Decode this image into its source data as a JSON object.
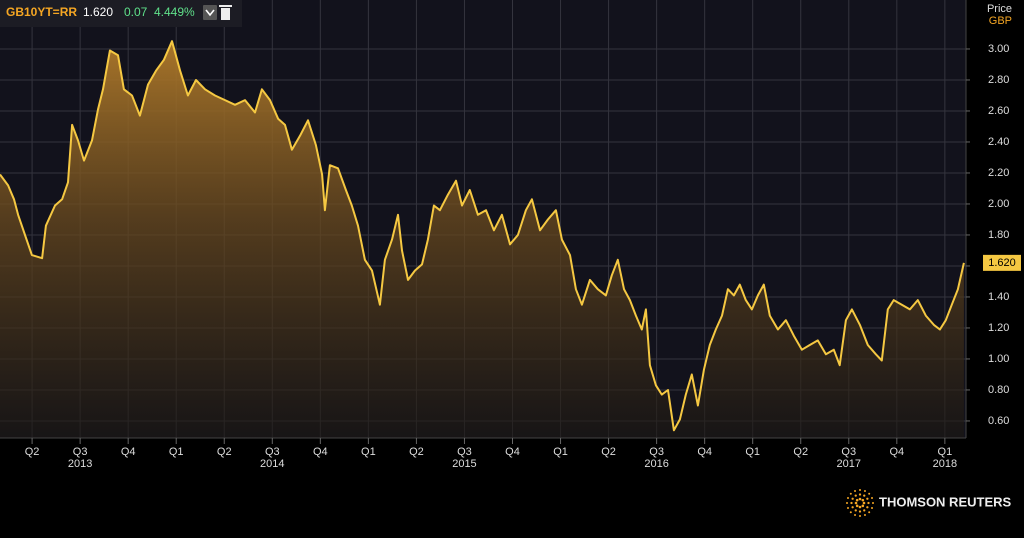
{
  "header": {
    "ric": "GB10YT=RR",
    "price": "1.620",
    "change": "0.07",
    "change_pct": "4.449%"
  },
  "footer": {
    "brand": "THOMSON REUTERS"
  },
  "chart_data": {
    "type": "line",
    "y_axis_title": "Price",
    "y_axis_unit": "GBP",
    "x": [
      2013.083,
      2013.125,
      2013.156,
      2013.177,
      2013.213,
      2013.249,
      2013.302,
      2013.322,
      2013.369,
      2013.406,
      2013.437,
      2013.458,
      2013.489,
      2013.52,
      2013.562,
      2013.593,
      2013.619,
      2013.655,
      2013.697,
      2013.728,
      2013.77,
      2013.811,
      2013.853,
      2013.895,
      2013.936,
      2013.978,
      2014.02,
      2014.061,
      2014.103,
      2014.15,
      2014.202,
      2014.254,
      2014.306,
      2014.358,
      2014.41,
      2014.446,
      2014.488,
      2014.53,
      2014.566,
      2014.602,
      2014.644,
      2014.686,
      2014.727,
      2014.759,
      2014.774,
      2014.8,
      2014.842,
      2014.883,
      2014.914,
      2014.946,
      2014.982,
      2015.019,
      2015.06,
      2015.086,
      2015.123,
      2015.154,
      2015.175,
      2015.206,
      2015.242,
      2015.279,
      2015.31,
      2015.341,
      2015.372,
      2015.414,
      2015.456,
      2015.487,
      2015.528,
      2015.57,
      2015.612,
      2015.653,
      2015.695,
      2015.737,
      2015.778,
      2015.82,
      2015.851,
      2015.893,
      2015.934,
      2015.976,
      2016.007,
      2016.049,
      2016.08,
      2016.111,
      2016.153,
      2016.194,
      2016.236,
      2016.267,
      2016.298,
      2016.33,
      2016.361,
      2016.392,
      2016.423,
      2016.444,
      2016.465,
      2016.496,
      2016.527,
      2016.559,
      2016.59,
      2016.621,
      2016.652,
      2016.683,
      2016.715,
      2016.746,
      2016.777,
      2016.808,
      2016.84,
      2016.871,
      2016.902,
      2016.933,
      2016.964,
      2016.996,
      2017.027,
      2017.058,
      2017.089,
      2017.131,
      2017.173,
      2017.214,
      2017.256,
      2017.297,
      2017.339,
      2017.381,
      2017.422,
      2017.453,
      2017.485,
      2017.516,
      2017.558,
      2017.599,
      2017.641,
      2017.672,
      2017.703,
      2017.734,
      2017.776,
      2017.818,
      2017.859,
      2017.901,
      2017.943,
      2017.974,
      2018.005,
      2018.036,
      2018.068,
      2018.099
    ],
    "series": [
      {
        "color": "#f5c842",
        "values": [
          2.19,
          2.12,
          2.03,
          1.93,
          1.8,
          1.67,
          1.65,
          1.86,
          1.99,
          2.03,
          2.14,
          2.51,
          2.41,
          2.28,
          2.41,
          2.61,
          2.74,
          2.99,
          2.96,
          2.74,
          2.7,
          2.57,
          2.77,
          2.86,
          2.93,
          3.05,
          2.86,
          2.7,
          2.8,
          2.74,
          2.7,
          2.67,
          2.64,
          2.67,
          2.59,
          2.74,
          2.67,
          2.55,
          2.51,
          2.35,
          2.44,
          2.54,
          2.38,
          2.19,
          1.96,
          2.25,
          2.23,
          2.09,
          1.99,
          1.86,
          1.64,
          1.57,
          1.35,
          1.64,
          1.77,
          1.93,
          1.7,
          1.51,
          1.57,
          1.61,
          1.77,
          1.99,
          1.96,
          2.06,
          2.15,
          1.99,
          2.09,
          1.93,
          1.96,
          1.83,
          1.93,
          1.74,
          1.8,
          1.96,
          2.03,
          1.83,
          1.9,
          1.96,
          1.77,
          1.67,
          1.45,
          1.35,
          1.51,
          1.45,
          1.41,
          1.54,
          1.64,
          1.45,
          1.38,
          1.28,
          1.19,
          1.32,
          0.96,
          0.83,
          0.77,
          0.8,
          0.54,
          0.61,
          0.77,
          0.9,
          0.7,
          0.93,
          1.09,
          1.19,
          1.28,
          1.45,
          1.41,
          1.48,
          1.38,
          1.32,
          1.41,
          1.48,
          1.28,
          1.19,
          1.25,
          1.15,
          1.06,
          1.09,
          1.12,
          1.03,
          1.06,
          0.96,
          1.25,
          1.32,
          1.22,
          1.09,
          1.03,
          0.99,
          1.32,
          1.38,
          1.35,
          1.32,
          1.38,
          1.28,
          1.22,
          1.19,
          1.25,
          1.35,
          1.45,
          1.62
        ]
      }
    ],
    "xlim": [
      2013.083,
      2018.11
    ],
    "ylim": [
      0.49,
      3.316
    ],
    "yticks": [
      {
        "value": 0.6,
        "label": "0.60"
      },
      {
        "value": 0.8,
        "label": "0.80"
      },
      {
        "value": 1.0,
        "label": "1.00"
      },
      {
        "value": 1.2,
        "label": "1.20"
      },
      {
        "value": 1.4,
        "label": "1.40"
      },
      {
        "value": 1.6,
        "label": "1.60"
      },
      {
        "value": 1.8,
        "label": "1.80"
      },
      {
        "value": 2.0,
        "label": "2.00"
      },
      {
        "value": 2.2,
        "label": "2.20"
      },
      {
        "value": 2.4,
        "label": "2.40"
      },
      {
        "value": 2.6,
        "label": "2.60"
      },
      {
        "value": 2.8,
        "label": "2.80"
      },
      {
        "value": 3.0,
        "label": "3.00"
      }
    ],
    "xticks": [
      {
        "value": 2013.25,
        "label": "Q2"
      },
      {
        "value": 2013.5,
        "label": "Q3"
      },
      {
        "value": 2013.75,
        "label": "Q4"
      },
      {
        "value": 2014.0,
        "label": "Q1"
      },
      {
        "value": 2014.25,
        "label": "Q2"
      },
      {
        "value": 2014.5,
        "label": "Q3"
      },
      {
        "value": 2014.75,
        "label": "Q4"
      },
      {
        "value": 2015.0,
        "label": "Q1"
      },
      {
        "value": 2015.25,
        "label": "Q2"
      },
      {
        "value": 2015.5,
        "label": "Q3"
      },
      {
        "value": 2015.75,
        "label": "Q4"
      },
      {
        "value": 2016.0,
        "label": "Q1"
      },
      {
        "value": 2016.25,
        "label": "Q2"
      },
      {
        "value": 2016.5,
        "label": "Q3"
      },
      {
        "value": 2016.75,
        "label": "Q4"
      },
      {
        "value": 2017.0,
        "label": "Q1"
      },
      {
        "value": 2017.25,
        "label": "Q2"
      },
      {
        "value": 2017.5,
        "label": "Q3"
      },
      {
        "value": 2017.75,
        "label": "Q4"
      },
      {
        "value": 2018.0,
        "label": "Q1"
      }
    ],
    "year_labels": [
      {
        "value": 2013.5,
        "label": "2013"
      },
      {
        "value": 2014.5,
        "label": "2014"
      },
      {
        "value": 2015.5,
        "label": "2015"
      },
      {
        "value": 2016.5,
        "label": "2016"
      },
      {
        "value": 2017.5,
        "label": "2017"
      },
      {
        "value": 2018.0,
        "label": "2018"
      }
    ],
    "grid": true
  }
}
